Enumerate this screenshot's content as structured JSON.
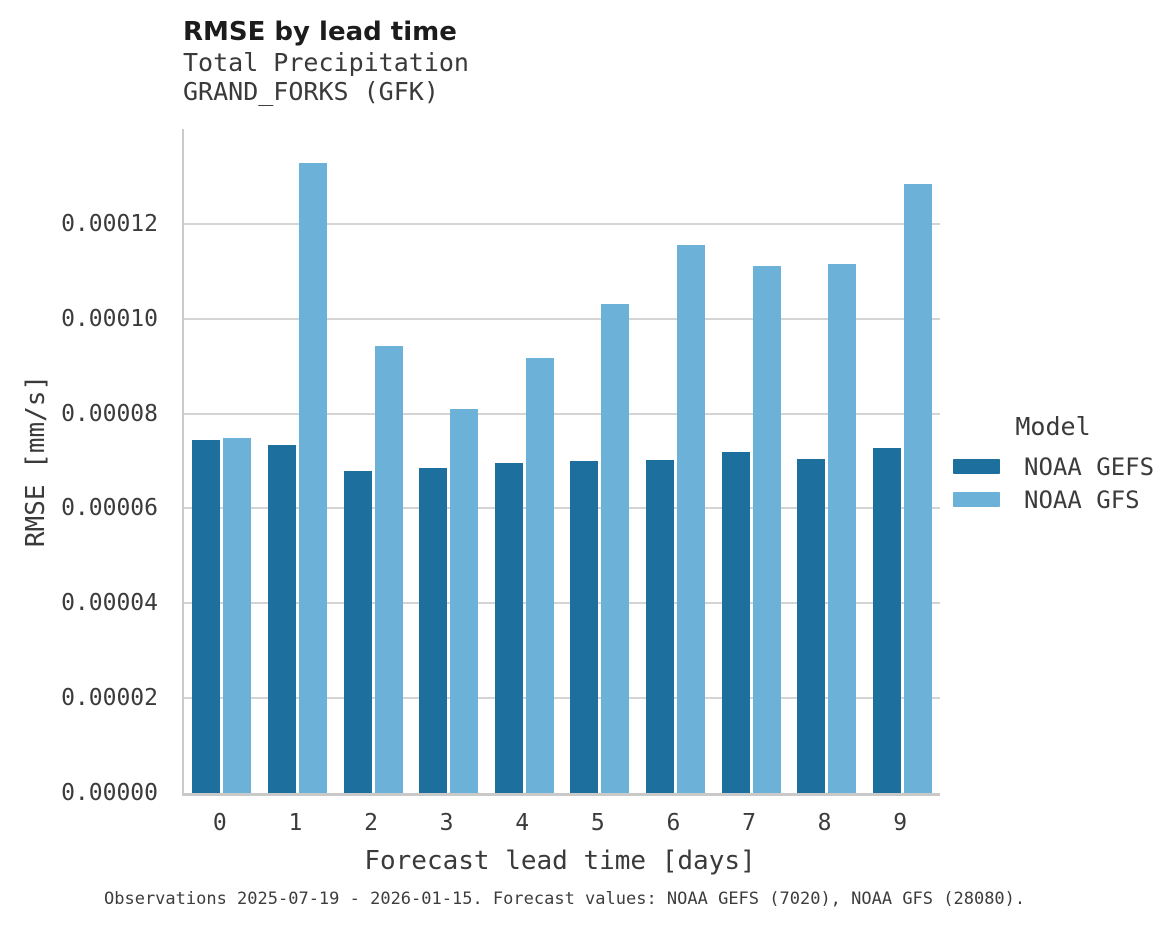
{
  "chart_data": {
    "type": "bar",
    "title": "RMSE by lead time",
    "subtitle": [
      "Total Precipitation",
      "GRAND_FORKS (GFK)"
    ],
    "xlabel": "Forecast lead time [days]",
    "ylabel": "RMSE [mm/s]",
    "caption": "Observations 2025-07-19 - 2026-01-15. Forecast values: NOAA GEFS (7020), NOAA GFS (28080).",
    "categories": [
      "0",
      "1",
      "2",
      "3",
      "4",
      "5",
      "6",
      "7",
      "8",
      "9"
    ],
    "series": [
      {
        "name": "NOAA GEFS",
        "color": "#1d6f9e",
        "values": [
          7.45e-05,
          7.33e-05,
          6.78e-05,
          6.86e-05,
          6.95e-05,
          7e-05,
          7.02e-05,
          7.19e-05,
          7.04e-05,
          7.27e-05
        ]
      },
      {
        "name": "NOAA GFS",
        "color": "#6cb1d8",
        "values": [
          7.48e-05,
          0.0001328,
          9.43e-05,
          8.1e-05,
          9.17e-05,
          0.0001031,
          0.0001155,
          0.0001112,
          0.0001115,
          0.0001285
        ]
      }
    ],
    "legend": {
      "title": "Model",
      "position": "right"
    },
    "ylim": [
      0,
      0.00014
    ],
    "yticks": {
      "values": [
        0,
        2e-05,
        4e-05,
        6e-05,
        8e-05,
        0.0001,
        0.00012
      ],
      "labels": [
        "0.00000",
        "0.00002",
        "0.00004",
        "0.00006",
        "0.00008",
        "0.00010",
        "0.00012"
      ]
    },
    "grid": "horizontal",
    "colors": {
      "grid": "#d4d4d4",
      "spine": "#c9c9c9",
      "text": "#3a3a3a",
      "title": "#1c1c1c"
    }
  }
}
